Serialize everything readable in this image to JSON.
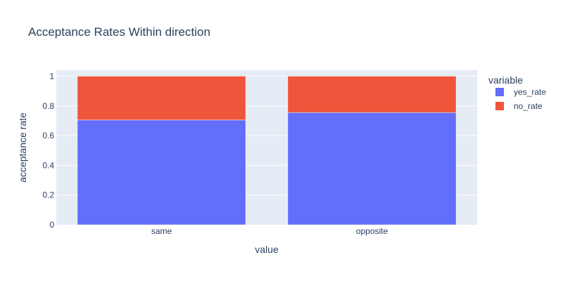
{
  "chart_data": {
    "type": "bar",
    "barmode": "stack",
    "title": "Acceptance Rates Within direction",
    "xlabel": "value",
    "ylabel": "acceptance rate",
    "categories": [
      "same",
      "opposite"
    ],
    "series": [
      {
        "name": "yes_rate",
        "color": "#636efa",
        "values": [
          0.705,
          0.755
        ]
      },
      {
        "name": "no_rate",
        "color": "#ef553b",
        "values": [
          0.295,
          0.245
        ]
      }
    ],
    "ylim": [
      0,
      1.04
    ],
    "yticks": [
      {
        "value": 0,
        "label": "0"
      },
      {
        "value": 0.2,
        "label": "0.2"
      },
      {
        "value": 0.4,
        "label": "0.4"
      },
      {
        "value": 0.6,
        "label": "0.6"
      },
      {
        "value": 0.8,
        "label": "0.8"
      },
      {
        "value": 1,
        "label": "1"
      }
    ],
    "grid": true,
    "plot_background": "#e5ecf6",
    "legend": {
      "title": "variable",
      "placement": "right"
    }
  }
}
